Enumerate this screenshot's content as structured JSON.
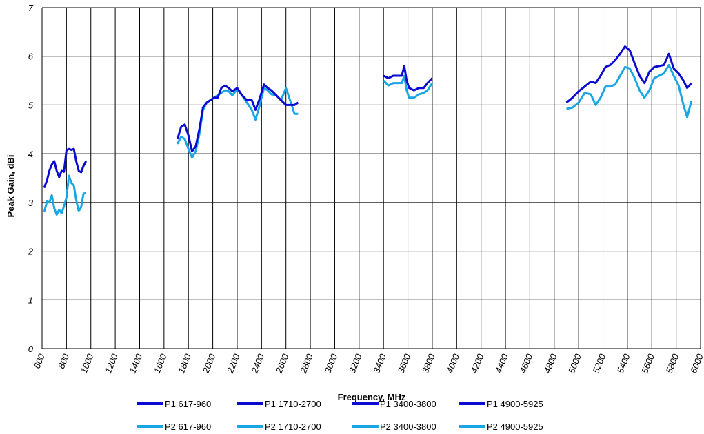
{
  "chart_data": {
    "type": "line",
    "title": "",
    "xlabel": "Frequency, MHz",
    "ylabel": "Peak Gain, dBi",
    "xlim": [
      600,
      6000
    ],
    "ylim": [
      0,
      7
    ],
    "grid": true,
    "x_ticks": [
      "600",
      "800",
      "1000",
      "1200",
      "1400",
      "1600",
      "1800",
      "2000",
      "2200",
      "2400",
      "2600",
      "2800",
      "3000",
      "3200",
      "3400",
      "3600",
      "3800",
      "4000",
      "4200",
      "4400",
      "4600",
      "4800",
      "5000",
      "5200",
      "5400",
      "5600",
      "5800",
      "6000"
    ],
    "y_ticks": [
      "0",
      "1",
      "2",
      "3",
      "4",
      "5",
      "6",
      "7"
    ],
    "legend_position": "bottom",
    "colors": {
      "P1": "#0a0ad2",
      "P2": "#1aa6e4"
    },
    "series": [
      {
        "name": "P1 617-960",
        "color": "#0a0ad2",
        "points": [
          [
            617,
            3.3
          ],
          [
            640,
            3.45
          ],
          [
            660,
            3.65
          ],
          [
            680,
            3.78
          ],
          [
            700,
            3.85
          ],
          [
            720,
            3.65
          ],
          [
            740,
            3.52
          ],
          [
            760,
            3.65
          ],
          [
            780,
            3.63
          ],
          [
            800,
            4.07
          ],
          [
            820,
            4.1
          ],
          [
            840,
            4.08
          ],
          [
            860,
            4.1
          ],
          [
            880,
            3.85
          ],
          [
            900,
            3.65
          ],
          [
            920,
            3.62
          ],
          [
            940,
            3.75
          ],
          [
            960,
            3.85
          ]
        ]
      },
      {
        "name": "P1 1710-2700",
        "color": "#0a0ad2",
        "points": [
          [
            1710,
            4.3
          ],
          [
            1740,
            4.55
          ],
          [
            1770,
            4.6
          ],
          [
            1800,
            4.38
          ],
          [
            1830,
            4.05
          ],
          [
            1860,
            4.15
          ],
          [
            1890,
            4.5
          ],
          [
            1920,
            4.95
          ],
          [
            1950,
            5.05
          ],
          [
            1980,
            5.1
          ],
          [
            2010,
            5.15
          ],
          [
            2040,
            5.15
          ],
          [
            2070,
            5.35
          ],
          [
            2100,
            5.4
          ],
          [
            2130,
            5.35
          ],
          [
            2160,
            5.28
          ],
          [
            2200,
            5.35
          ],
          [
            2240,
            5.2
          ],
          [
            2280,
            5.1
          ],
          [
            2320,
            5.1
          ],
          [
            2350,
            4.9
          ],
          [
            2380,
            5.1
          ],
          [
            2420,
            5.42
          ],
          [
            2450,
            5.35
          ],
          [
            2480,
            5.3
          ],
          [
            2520,
            5.2
          ],
          [
            2560,
            5.1
          ],
          [
            2600,
            5.0
          ],
          [
            2640,
            5.0
          ],
          [
            2670,
            5.0
          ],
          [
            2700,
            5.05
          ]
        ]
      },
      {
        "name": "P1 3400-3800",
        "color": "#0a0ad2",
        "points": [
          [
            3400,
            5.6
          ],
          [
            3440,
            5.55
          ],
          [
            3480,
            5.6
          ],
          [
            3520,
            5.6
          ],
          [
            3550,
            5.6
          ],
          [
            3570,
            5.8
          ],
          [
            3590,
            5.5
          ],
          [
            3610,
            5.35
          ],
          [
            3650,
            5.3
          ],
          [
            3690,
            5.35
          ],
          [
            3730,
            5.35
          ],
          [
            3760,
            5.45
          ],
          [
            3800,
            5.55
          ]
        ]
      },
      {
        "name": "P1 4900-5925",
        "color": "#0a0ad2",
        "points": [
          [
            4900,
            5.05
          ],
          [
            4950,
            5.15
          ],
          [
            5000,
            5.28
          ],
          [
            5050,
            5.38
          ],
          [
            5100,
            5.48
          ],
          [
            5140,
            5.45
          ],
          [
            5180,
            5.6
          ],
          [
            5220,
            5.78
          ],
          [
            5260,
            5.82
          ],
          [
            5300,
            5.92
          ],
          [
            5340,
            6.05
          ],
          [
            5380,
            6.2
          ],
          [
            5420,
            6.12
          ],
          [
            5460,
            5.85
          ],
          [
            5500,
            5.6
          ],
          [
            5540,
            5.45
          ],
          [
            5580,
            5.68
          ],
          [
            5620,
            5.78
          ],
          [
            5660,
            5.8
          ],
          [
            5700,
            5.82
          ],
          [
            5740,
            6.05
          ],
          [
            5780,
            5.75
          ],
          [
            5820,
            5.65
          ],
          [
            5860,
            5.5
          ],
          [
            5890,
            5.35
          ],
          [
            5925,
            5.45
          ]
        ]
      },
      {
        "name": "P2 617-960",
        "color": "#1aa6e4",
        "points": [
          [
            617,
            2.8
          ],
          [
            640,
            3.02
          ],
          [
            660,
            3.0
          ],
          [
            680,
            3.15
          ],
          [
            700,
            2.88
          ],
          [
            720,
            2.75
          ],
          [
            740,
            2.85
          ],
          [
            760,
            2.78
          ],
          [
            780,
            2.92
          ],
          [
            800,
            3.1
          ],
          [
            820,
            3.55
          ],
          [
            840,
            3.4
          ],
          [
            860,
            3.35
          ],
          [
            880,
            3.05
          ],
          [
            900,
            2.82
          ],
          [
            920,
            2.9
          ],
          [
            940,
            3.18
          ],
          [
            960,
            3.2
          ]
        ]
      },
      {
        "name": "P2 1710-2700",
        "color": "#1aa6e4",
        "points": [
          [
            1710,
            4.2
          ],
          [
            1740,
            4.35
          ],
          [
            1770,
            4.3
          ],
          [
            1800,
            4.1
          ],
          [
            1830,
            3.92
          ],
          [
            1860,
            4.05
          ],
          [
            1890,
            4.4
          ],
          [
            1920,
            4.9
          ],
          [
            1950,
            5.05
          ],
          [
            1980,
            5.1
          ],
          [
            2010,
            5.15
          ],
          [
            2040,
            5.2
          ],
          [
            2070,
            5.25
          ],
          [
            2100,
            5.3
          ],
          [
            2130,
            5.28
          ],
          [
            2160,
            5.2
          ],
          [
            2200,
            5.32
          ],
          [
            2240,
            5.2
          ],
          [
            2280,
            5.05
          ],
          [
            2320,
            4.9
          ],
          [
            2350,
            4.7
          ],
          [
            2380,
            4.95
          ],
          [
            2420,
            5.35
          ],
          [
            2450,
            5.3
          ],
          [
            2480,
            5.22
          ],
          [
            2520,
            5.2
          ],
          [
            2560,
            5.1
          ],
          [
            2600,
            5.35
          ],
          [
            2640,
            5.05
          ],
          [
            2670,
            4.82
          ],
          [
            2700,
            4.82
          ]
        ]
      },
      {
        "name": "P2 3400-3800",
        "color": "#1aa6e4",
        "points": [
          [
            3400,
            5.5
          ],
          [
            3440,
            5.4
          ],
          [
            3480,
            5.45
          ],
          [
            3520,
            5.45
          ],
          [
            3550,
            5.45
          ],
          [
            3570,
            5.6
          ],
          [
            3590,
            5.3
          ],
          [
            3610,
            5.15
          ],
          [
            3650,
            5.15
          ],
          [
            3690,
            5.22
          ],
          [
            3730,
            5.25
          ],
          [
            3760,
            5.3
          ],
          [
            3800,
            5.45
          ]
        ]
      },
      {
        "name": "P2 4900-5925",
        "color": "#1aa6e4",
        "points": [
          [
            4900,
            4.92
          ],
          [
            4950,
            4.95
          ],
          [
            5000,
            5.05
          ],
          [
            5050,
            5.25
          ],
          [
            5100,
            5.22
          ],
          [
            5140,
            5.0
          ],
          [
            5180,
            5.15
          ],
          [
            5220,
            5.38
          ],
          [
            5260,
            5.38
          ],
          [
            5300,
            5.42
          ],
          [
            5340,
            5.6
          ],
          [
            5380,
            5.78
          ],
          [
            5420,
            5.75
          ],
          [
            5460,
            5.55
          ],
          [
            5500,
            5.3
          ],
          [
            5540,
            5.15
          ],
          [
            5580,
            5.3
          ],
          [
            5620,
            5.55
          ],
          [
            5660,
            5.6
          ],
          [
            5700,
            5.65
          ],
          [
            5740,
            5.82
          ],
          [
            5780,
            5.6
          ],
          [
            5820,
            5.4
          ],
          [
            5860,
            5.0
          ],
          [
            5890,
            4.75
          ],
          [
            5925,
            5.08
          ]
        ]
      }
    ]
  }
}
